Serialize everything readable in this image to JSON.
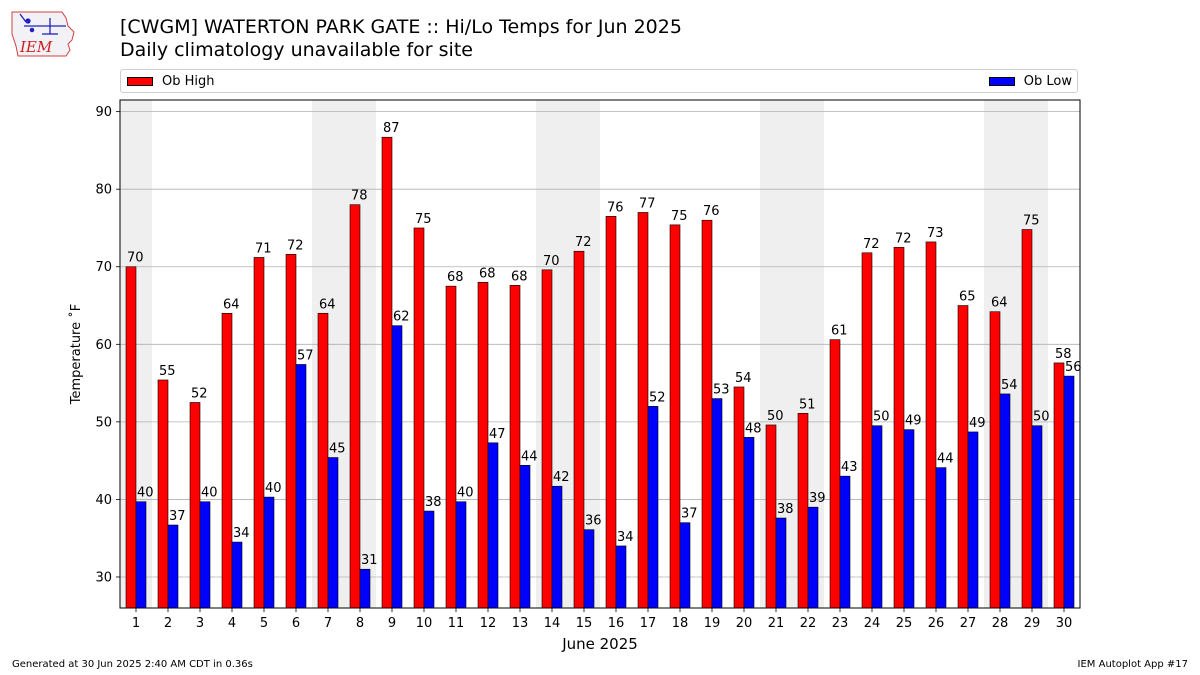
{
  "title": "[CWGM] WATERTON PARK GATE :: Hi/Lo Temps for Jun 2025",
  "subtitle": "Daily climatology unavailable for site",
  "logo_text": "IEM",
  "footer_left": "Generated at 30 Jun 2025 2:40 AM CDT in 0.36s",
  "footer_right": "IEM Autoplot App #17",
  "chart_data": {
    "type": "bar",
    "xlabel": "June 2025",
    "ylabel": "Temperature ˚F",
    "ylim": [
      26,
      91.5
    ],
    "yticks": [
      30,
      40,
      50,
      60,
      70,
      80,
      90
    ],
    "grid": true,
    "legend": "top",
    "categories": [
      "1",
      "2",
      "3",
      "4",
      "5",
      "6",
      "7",
      "8",
      "9",
      "10",
      "11",
      "12",
      "13",
      "14",
      "15",
      "16",
      "17",
      "18",
      "19",
      "20",
      "21",
      "22",
      "23",
      "24",
      "25",
      "26",
      "27",
      "28",
      "29",
      "30"
    ],
    "weekend_shaded_days": [
      1,
      7,
      8,
      14,
      15,
      21,
      22,
      28,
      29
    ],
    "series": [
      {
        "name": "Ob High",
        "color": "#ff0000",
        "values": [
          70,
          55.4,
          52.5,
          64,
          71.2,
          71.6,
          64,
          78,
          86.7,
          75,
          67.5,
          68,
          67.6,
          69.6,
          72,
          76.5,
          77,
          75.4,
          76,
          54.5,
          49.6,
          51.1,
          60.6,
          71.8,
          72.5,
          73.2,
          65,
          64.2,
          74.8,
          57.6
        ],
        "labels": [
          "70",
          "55",
          "52",
          "64",
          "71",
          "72",
          "64",
          "78",
          "87",
          "75",
          "68",
          "68",
          "68",
          "70",
          "72",
          "76",
          "77",
          "75",
          "76",
          "54",
          "50",
          "51",
          "61",
          "72",
          "72",
          "73",
          "65",
          "64",
          "75",
          "58"
        ]
      },
      {
        "name": "Ob Low",
        "color": "#0000ff",
        "values": [
          39.7,
          36.7,
          39.7,
          34.5,
          40.3,
          57.4,
          45.4,
          31,
          62.4,
          38.5,
          39.7,
          47.3,
          44.4,
          41.7,
          36.1,
          34,
          52,
          37,
          53,
          48,
          37.6,
          39,
          43,
          49.5,
          49,
          44.1,
          48.7,
          53.6,
          49.5,
          55.9
        ],
        "labels": [
          "40",
          "37",
          "40",
          "34",
          "40",
          "57",
          "45",
          "31",
          "62",
          "38",
          "40",
          "47",
          "44",
          "42",
          "36",
          "34",
          "52",
          "37",
          "53",
          "48",
          "38",
          "39",
          "43",
          "50",
          "49",
          "44",
          "49",
          "54",
          "50",
          "56"
        ]
      }
    ]
  }
}
